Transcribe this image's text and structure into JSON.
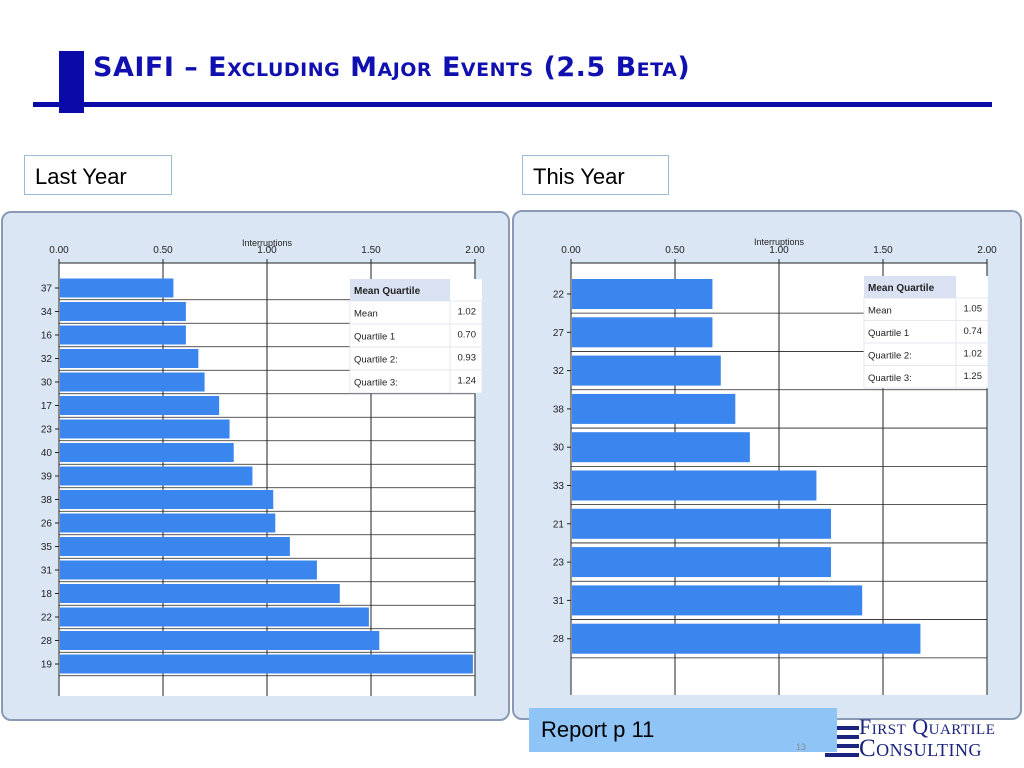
{
  "slide": {
    "title": "SAIFI – Excluding Major Events (2.5 Beta)",
    "label_left": "Last Year",
    "label_right": "This Year",
    "report_ref": "Report p 11",
    "page_number": "13"
  },
  "logo": {
    "line1": "First Quartile",
    "line2": "Consulting"
  },
  "colors": {
    "bar": "#3a86ee",
    "title": "#1010b0",
    "panel_bg": "#dbe6f4"
  },
  "chart_data": [
    {
      "type": "bar",
      "orientation": "horizontal",
      "xlabel": "Interruptions",
      "xlim": [
        0,
        2.0
      ],
      "xticks": [
        "0.00",
        "0.50",
        "1.00",
        "1.50",
        "2.00"
      ],
      "grid": true,
      "categories": [
        "37",
        "34",
        "16",
        "32",
        "30",
        "17",
        "23",
        "40",
        "39",
        "38",
        "26",
        "35",
        "31",
        "18",
        "22",
        "28",
        "19"
      ],
      "values": [
        0.55,
        0.61,
        0.61,
        0.67,
        0.7,
        0.77,
        0.82,
        0.84,
        0.93,
        1.03,
        1.04,
        1.11,
        1.24,
        1.35,
        1.49,
        1.54,
        1.99
      ],
      "stats_table": {
        "header": "Mean Quartile",
        "rows": [
          {
            "label": "Mean",
            "value": "1.02"
          },
          {
            "label": "Quartile 1",
            "value": "0.70"
          },
          {
            "label": "Quartile 2:",
            "value": "0.93"
          },
          {
            "label": "Quartile 3:",
            "value": "1.24"
          }
        ]
      }
    },
    {
      "type": "bar",
      "orientation": "horizontal",
      "xlabel": "Interruptions",
      "xlim": [
        0,
        2.0
      ],
      "xticks": [
        "0.00",
        "0.50",
        "1.00",
        "1.50",
        "2.00"
      ],
      "grid": true,
      "categories": [
        "22",
        "27",
        "32",
        "38",
        "30",
        "33",
        "21",
        "23",
        "31",
        "28"
      ],
      "values": [
        0.68,
        0.68,
        0.72,
        0.79,
        0.86,
        1.18,
        1.25,
        1.25,
        1.4,
        1.68
      ],
      "stats_table": {
        "header": "Mean Quartile",
        "rows": [
          {
            "label": "Mean",
            "value": "1.05"
          },
          {
            "label": "Quartile 1",
            "value": "0.74"
          },
          {
            "label": "Quartile 2:",
            "value": "1.02"
          },
          {
            "label": "Quartile 3:",
            "value": "1.25"
          }
        ]
      }
    }
  ]
}
